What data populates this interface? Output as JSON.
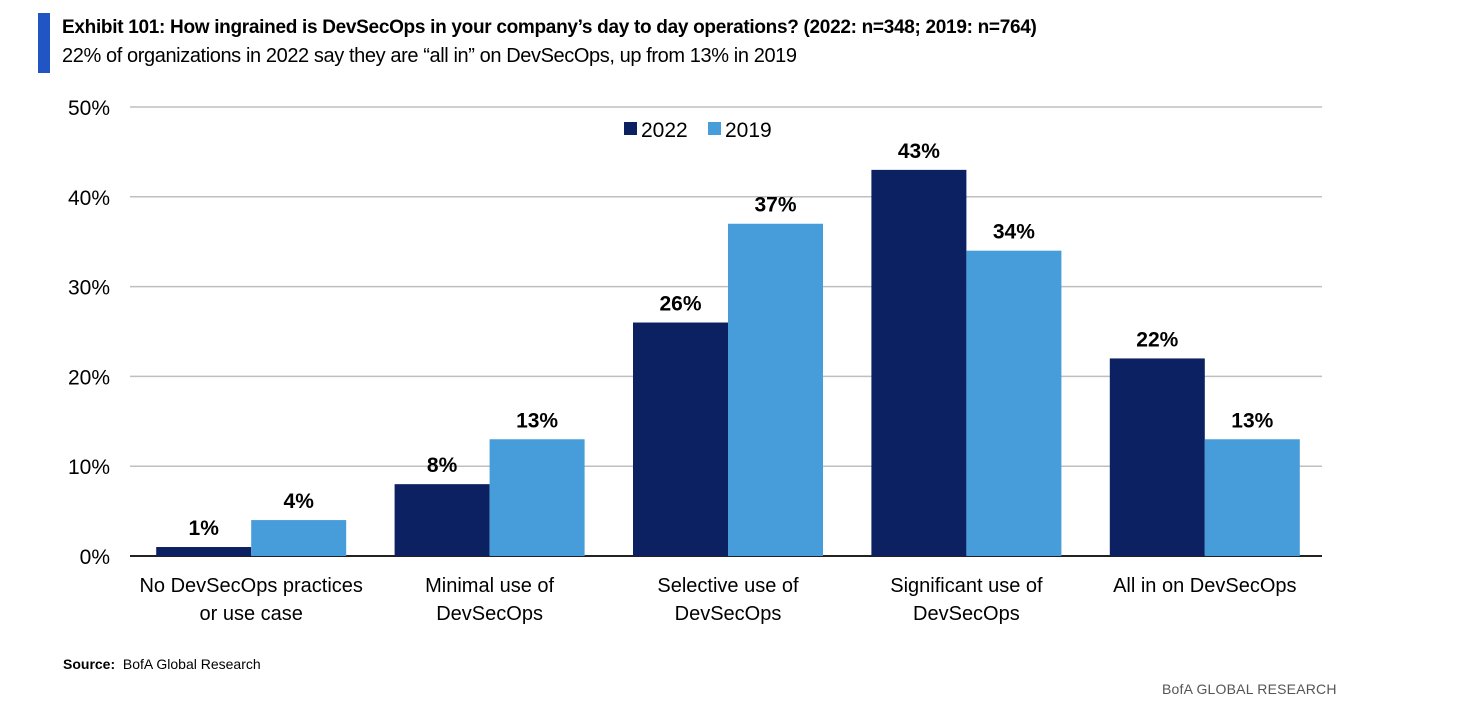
{
  "header": {
    "title": "Exhibit 101: How ingrained is DevSecOps in your company’s day to day operations? (2022:  n=348; 2019: n=764)",
    "subtitle": "22% of organizations in 2022 say they are “all in” on DevSecOps, up from 13% in 2019"
  },
  "chart_data": {
    "type": "bar",
    "categories": [
      [
        "No DevSecOps practices",
        "or use case"
      ],
      [
        "Minimal use of",
        "DevSecOps"
      ],
      [
        "Selective use of",
        "DevSecOps"
      ],
      [
        "Significant use of",
        "DevSecOps"
      ],
      [
        "All in on DevSecOps"
      ]
    ],
    "series": [
      {
        "name": "2022",
        "color": "#0c2162",
        "values": [
          1,
          8,
          26,
          43,
          22
        ]
      },
      {
        "name": "2019",
        "color": "#469dd9",
        "values": [
          4,
          13,
          37,
          34,
          13
        ]
      }
    ],
    "ylim": [
      0,
      50
    ],
    "yticks": [
      "0%",
      "10%",
      "20%",
      "30%",
      "40%",
      "50%"
    ],
    "grid": true,
    "legend": "top-center",
    "data_labels": true
  },
  "footer": {
    "source_label": "Source:",
    "source_text": "BofA Global Research",
    "brand": "BofA GLOBAL RESEARCH"
  }
}
